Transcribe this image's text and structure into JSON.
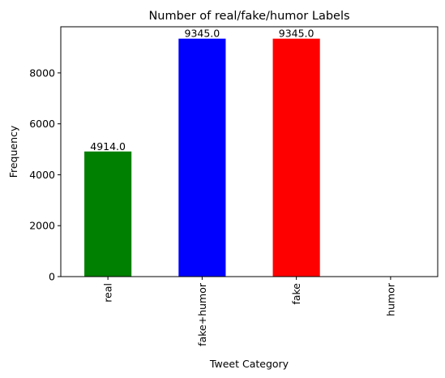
{
  "chart_data": {
    "type": "bar",
    "title": "Number of real/fake/humor Labels",
    "xlabel": "Tweet Category",
    "ylabel": "Frequency",
    "categories": [
      "real",
      "fake+humor",
      "fake",
      "humor"
    ],
    "values": [
      4914.0,
      9345.0,
      9345.0,
      0
    ],
    "data_labels": [
      "4914.0",
      "9345.0",
      "9345.0",
      ""
    ],
    "bar_colors": [
      "#008000",
      "#0000ff",
      "#ff0000",
      "#808080"
    ],
    "ylim": [
      0,
      9812
    ],
    "yticks": [
      0,
      2000,
      4000,
      6000,
      8000
    ],
    "grid": false,
    "legend": "none"
  }
}
